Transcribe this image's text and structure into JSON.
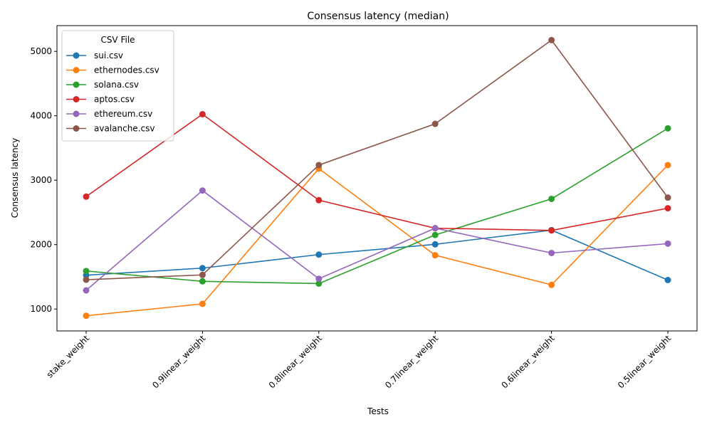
{
  "chart_data": {
    "type": "line",
    "title": "Consensus latency (median)",
    "xlabel": "Tests",
    "ylabel": "Consensus latency",
    "categories": [
      "stake_weight",
      "0.9linear_weight",
      "0.8linear_weight",
      "0.7linear_weight",
      "0.6linear_weight",
      "0.5linear_weight"
    ],
    "ylim": [
      660,
      5400
    ],
    "yticks": [
      1000,
      2000,
      3000,
      4000,
      5000
    ],
    "grid": false,
    "legend": {
      "title": "CSV File",
      "placement": "top-left"
    },
    "series": [
      {
        "name": "sui.csv",
        "color": "#1f77b4",
        "values": [
          1525,
          1635,
          1845,
          2005,
          2225,
          1450
        ]
      },
      {
        "name": "ethernodes.csv",
        "color": "#ff7f0e",
        "values": [
          895,
          1080,
          3180,
          1835,
          1375,
          3235
        ]
      },
      {
        "name": "solana.csv",
        "color": "#2ca02c",
        "values": [
          1590,
          1430,
          1395,
          2150,
          2710,
          3805
        ]
      },
      {
        "name": "aptos.csv",
        "color": "#d62728",
        "values": [
          2745,
          4025,
          2690,
          2255,
          2220,
          2565
        ]
      },
      {
        "name": "ethereum.csv",
        "color": "#9467bd",
        "values": [
          1290,
          2840,
          1470,
          2255,
          1870,
          2015
        ]
      },
      {
        "name": "avalanche.csv",
        "color": "#8c564b",
        "values": [
          1455,
          1530,
          3235,
          3875,
          5175,
          2730
        ]
      }
    ]
  }
}
